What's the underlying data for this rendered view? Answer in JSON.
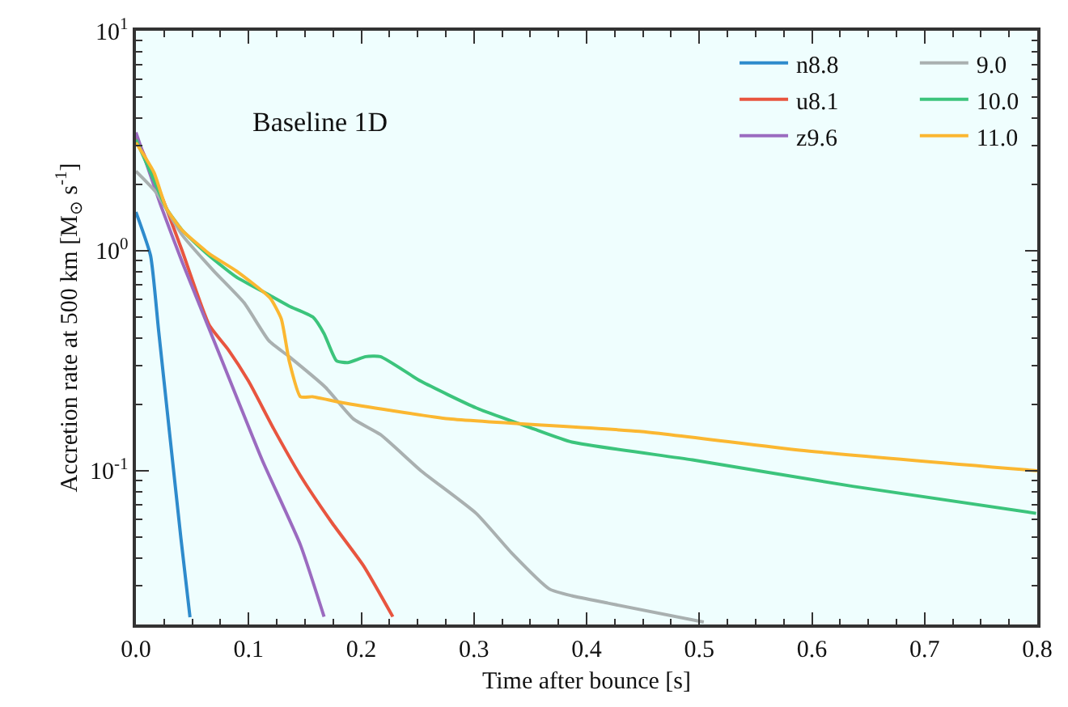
{
  "chart_data": {
    "type": "line",
    "xlabel": "Time after bounce [s]",
    "ylabel": "Accretion rate at 500 km [M$_{⊙}$ s$^{-1}$]",
    "annotations": [
      "Baseline 1D"
    ],
    "log": "y",
    "grid": false,
    "legend": "top right",
    "line_style": "solid",
    "marker": "none",
    "xlim": [
      0,
      0.8
    ],
    "xticks": [
      {
        "value": 0,
        "label": "0.0"
      },
      0.1,
      0.2,
      0.3,
      0.4,
      0.5,
      0.6,
      0.7,
      0.8
    ],
    "ylim": [
      0.02,
      10
    ],
    "yticks": [
      {
        "value": 0.1,
        "label": "10$^{-1}$"
      },
      {
        "value": 1,
        "label": "10$^{0}$"
      },
      {
        "value": 10,
        "label": "10$^{1}$"
      }
    ],
    "series": [
      {
        "name": "n8.8",
        "color": "#2e8bcc",
        "x": [
          0,
          0.013,
          0.02,
          0.03,
          0.04,
          0.048
        ],
        "values": [
          1.5,
          0.95,
          0.44,
          0.146,
          0.049,
          0.0216
        ]
      },
      {
        "name": "u8.1",
        "color": "#e8553f",
        "x": [
          0,
          0.016,
          0.027,
          0.041,
          0.065,
          0.082,
          0.1,
          0.122,
          0.146,
          0.174,
          0.202,
          0.228
        ],
        "values": [
          3.3,
          2.16,
          1.56,
          1.0,
          0.46,
          0.355,
          0.255,
          0.156,
          0.095,
          0.058,
          0.037,
          0.0217
        ]
      },
      {
        "name": "z9.6",
        "color": "#9b6bc0",
        "x": [
          0,
          0.023,
          0.041,
          0.075,
          0.112,
          0.146,
          0.167
        ],
        "values": [
          3.45,
          1.56,
          0.89,
          0.33,
          0.112,
          0.046,
          0.0217
        ]
      },
      {
        "name": "9.0",
        "color": "#a9b0b0",
        "x": [
          0,
          0.018,
          0.041,
          0.069,
          0.096,
          0.118,
          0.136,
          0.168,
          0.193,
          0.217,
          0.253,
          0.302,
          0.334,
          0.367,
          0.387,
          0.419,
          0.504
        ],
        "values": [
          2.3,
          1.84,
          1.18,
          0.81,
          0.58,
          0.39,
          0.33,
          0.24,
          0.172,
          0.146,
          0.1,
          0.064,
          0.042,
          0.029,
          0.027,
          0.025,
          0.0205
        ]
      },
      {
        "name": "10.0",
        "color": "#3cc47c",
        "x": [
          0,
          0.013,
          0.027,
          0.041,
          0.065,
          0.089,
          0.118,
          0.136,
          0.157,
          0.167,
          0.178,
          0.188,
          0.204,
          0.217,
          0.253,
          0.302,
          0.353,
          0.387,
          0.494,
          0.636,
          0.799
        ],
        "values": [
          3.2,
          2.27,
          1.56,
          1.24,
          0.95,
          0.76,
          0.63,
          0.56,
          0.5,
          0.42,
          0.316,
          0.31,
          0.33,
          0.33,
          0.255,
          0.193,
          0.155,
          0.135,
          0.112,
          0.085,
          0.064
        ]
      },
      {
        "name": "11.0",
        "color": "#fbb731",
        "x": [
          0,
          0.016,
          0.027,
          0.041,
          0.065,
          0.089,
          0.119,
          0.129,
          0.136,
          0.146,
          0.157,
          0.183,
          0.278,
          0.447,
          0.589,
          0.8
        ],
        "values": [
          3.1,
          2.27,
          1.56,
          1.24,
          0.97,
          0.81,
          0.61,
          0.49,
          0.316,
          0.217,
          0.217,
          0.204,
          0.172,
          0.151,
          0.124,
          0.1
        ]
      }
    ]
  }
}
